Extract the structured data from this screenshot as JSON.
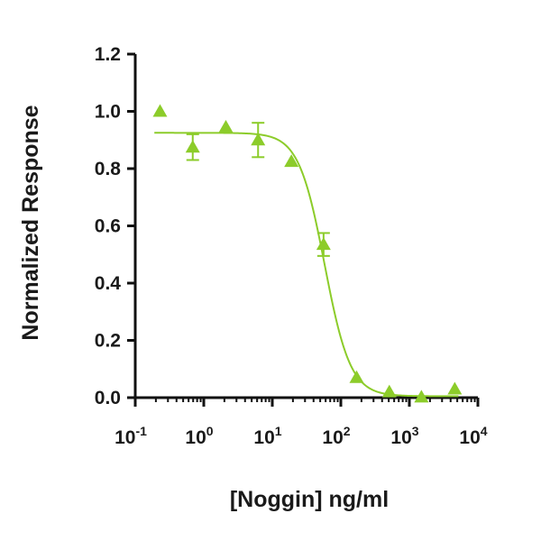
{
  "chart_data": {
    "type": "scatter",
    "xlabel": "[Noggin] ng/ml",
    "ylabel": "Normalized Response",
    "x_scale": "log",
    "xlim": [
      0.1,
      10000
    ],
    "ylim": [
      0,
      1.2
    ],
    "y_ticks": [
      "0.0",
      "0.2",
      "0.4",
      "0.6",
      "0.8",
      "1.0",
      "1.2"
    ],
    "x_ticks": [
      {
        "base": "10",
        "exp": "-1"
      },
      {
        "base": "10",
        "exp": "0"
      },
      {
        "base": "10",
        "exp": "1"
      },
      {
        "base": "10",
        "exp": "2"
      },
      {
        "base": "10",
        "exp": "3"
      },
      {
        "base": "10",
        "exp": "4"
      }
    ],
    "grid": false,
    "marker": "triangle",
    "color": "#8ccc2a",
    "series": [
      {
        "points": [
          {
            "x": 0.23,
            "y": 1.0,
            "err": 0
          },
          {
            "x": 0.69,
            "y": 0.875,
            "err": 0.045
          },
          {
            "x": 2.1,
            "y": 0.945,
            "err": 0
          },
          {
            "x": 6.2,
            "y": 0.9,
            "err": 0.06
          },
          {
            "x": 19,
            "y": 0.825,
            "err": 0
          },
          {
            "x": 56,
            "y": 0.535,
            "err": 0.04
          },
          {
            "x": 170,
            "y": 0.07,
            "err": 0
          },
          {
            "x": 510,
            "y": 0.02,
            "err": 0
          },
          {
            "x": 1500,
            "y": 0.002,
            "err": 0
          },
          {
            "x": 4600,
            "y": 0.03,
            "err": 0
          }
        ]
      }
    ],
    "fit": {
      "top": 0.925,
      "bottom": 0.005,
      "ec50": 58,
      "hill": 2.3
    }
  }
}
